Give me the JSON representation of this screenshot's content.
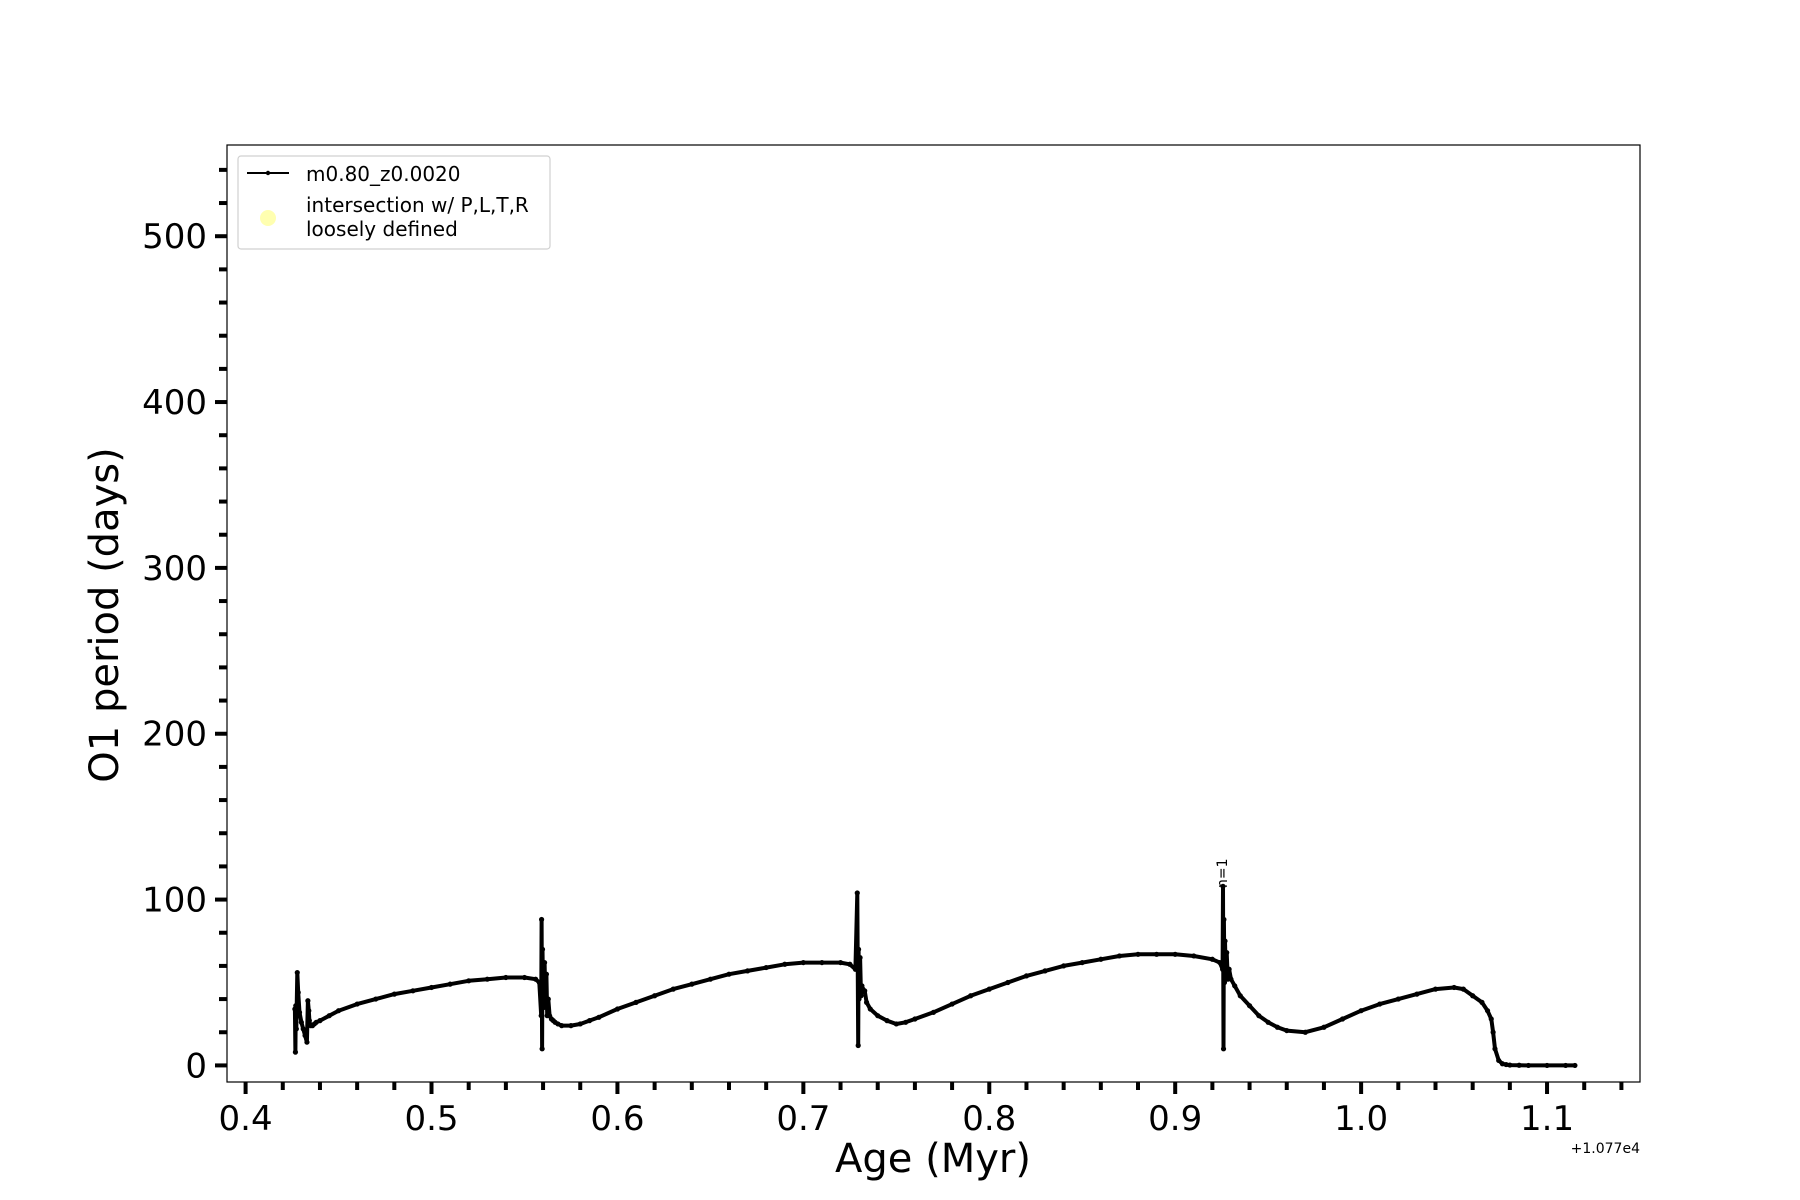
{
  "chart_data": {
    "type": "line",
    "title": "",
    "xlabel": "Age (Myr)",
    "ylabel": "O1 period (days)",
    "x_offset_text": "+1.077e4",
    "xlim": [
      0.39,
      1.15
    ],
    "ylim": [
      -10,
      555
    ],
    "x_ticks": [
      0.4,
      0.5,
      0.6,
      0.7,
      0.8,
      0.9,
      1.0,
      1.1
    ],
    "x_tick_labels": [
      "0.4",
      "0.5",
      "0.6",
      "0.7",
      "0.8",
      "0.9",
      "1.0",
      "1.1"
    ],
    "x_minor_step": 0.02,
    "y_ticks": [
      0,
      100,
      200,
      300,
      400,
      500
    ],
    "y_tick_labels": [
      "0",
      "100",
      "200",
      "300",
      "400",
      "500"
    ],
    "y_minor_step": 20,
    "grid": false,
    "legend_position": "top-left",
    "legend": [
      {
        "label": "m0.80_z0.0020",
        "kind": "line",
        "color": "#000000"
      },
      {
        "label": "intersection w/ P,L,T,R\nloosely defined",
        "kind": "marker",
        "color": "#ffffb0"
      }
    ],
    "annotations": [
      {
        "text": "n=1",
        "x": 0.929,
        "y": 110,
        "rotation": -90
      }
    ],
    "series": [
      {
        "name": "m0.80_z0.0020",
        "color": "#000000",
        "x": [
          0.4265,
          0.4268,
          0.427,
          0.4273,
          0.4278,
          0.4283,
          0.429,
          0.43,
          0.431,
          0.432,
          0.433,
          0.4335,
          0.434,
          0.4343,
          0.4345,
          0.435,
          0.436,
          0.437,
          0.438,
          0.44,
          0.445,
          0.45,
          0.46,
          0.47,
          0.48,
          0.49,
          0.5,
          0.51,
          0.52,
          0.53,
          0.54,
          0.55,
          0.556,
          0.558,
          0.559,
          0.5592,
          0.5595,
          0.5597,
          0.56,
          0.5603,
          0.5605,
          0.5608,
          0.5612,
          0.5618,
          0.5622,
          0.5628,
          0.5635,
          0.5645,
          0.5655,
          0.5665,
          0.568,
          0.57,
          0.575,
          0.58,
          0.585,
          0.59,
          0.6,
          0.61,
          0.62,
          0.63,
          0.64,
          0.65,
          0.66,
          0.67,
          0.68,
          0.69,
          0.7,
          0.71,
          0.72,
          0.725,
          0.728,
          0.729,
          0.7295,
          0.7297,
          0.7299,
          0.73,
          0.7302,
          0.7305,
          0.731,
          0.7315,
          0.732,
          0.733,
          0.734,
          0.736,
          0.74,
          0.745,
          0.75,
          0.755,
          0.76,
          0.77,
          0.78,
          0.79,
          0.8,
          0.81,
          0.82,
          0.83,
          0.84,
          0.85,
          0.86,
          0.87,
          0.88,
          0.89,
          0.9,
          0.91,
          0.92,
          0.924,
          0.9255,
          0.9257,
          0.926,
          0.9262,
          0.9265,
          0.9268,
          0.9272,
          0.9277,
          0.9283,
          0.929,
          0.93,
          0.932,
          0.935,
          0.94,
          0.945,
          0.95,
          0.955,
          0.96,
          0.97,
          0.98,
          0.99,
          1.0,
          1.01,
          1.02,
          1.03,
          1.04,
          1.05,
          1.055,
          1.06,
          1.065,
          1.068,
          1.07,
          1.071,
          1.072,
          1.074,
          1.076,
          1.078,
          1.08,
          1.085,
          1.09,
          1.1,
          1.11,
          1.115
        ],
        "y": [
          34,
          8,
          36,
          22,
          56,
          44,
          32,
          26,
          22,
          18,
          14,
          39,
          33,
          27,
          25,
          24,
          24,
          25,
          26,
          27,
          30,
          33,
          37,
          40,
          43,
          45,
          47,
          49,
          51,
          52,
          53,
          53,
          52,
          50,
          30,
          88,
          10,
          70,
          45,
          60,
          35,
          62,
          40,
          55,
          30,
          40,
          30,
          28,
          27,
          26,
          25,
          24,
          24,
          25,
          27,
          29,
          34,
          38,
          42,
          46,
          49,
          52,
          55,
          57,
          59,
          61,
          62,
          62,
          62,
          61,
          58,
          104,
          12,
          70,
          40,
          55,
          45,
          65,
          42,
          48,
          46,
          45,
          38,
          34,
          30,
          27,
          25,
          26,
          28,
          32,
          37,
          42,
          46,
          50,
          54,
          57,
          60,
          62,
          64,
          66,
          67,
          67,
          67,
          66,
          64,
          62,
          58,
          108,
          10,
          88,
          50,
          75,
          55,
          68,
          52,
          58,
          52,
          48,
          42,
          36,
          30,
          26,
          23,
          21,
          20,
          23,
          28,
          33,
          37,
          40,
          43,
          46,
          47,
          46,
          42,
          38,
          33,
          28,
          20,
          10,
          3,
          1,
          0.5,
          0.2,
          0.1,
          0,
          0,
          0,
          0
        ]
      }
    ]
  }
}
